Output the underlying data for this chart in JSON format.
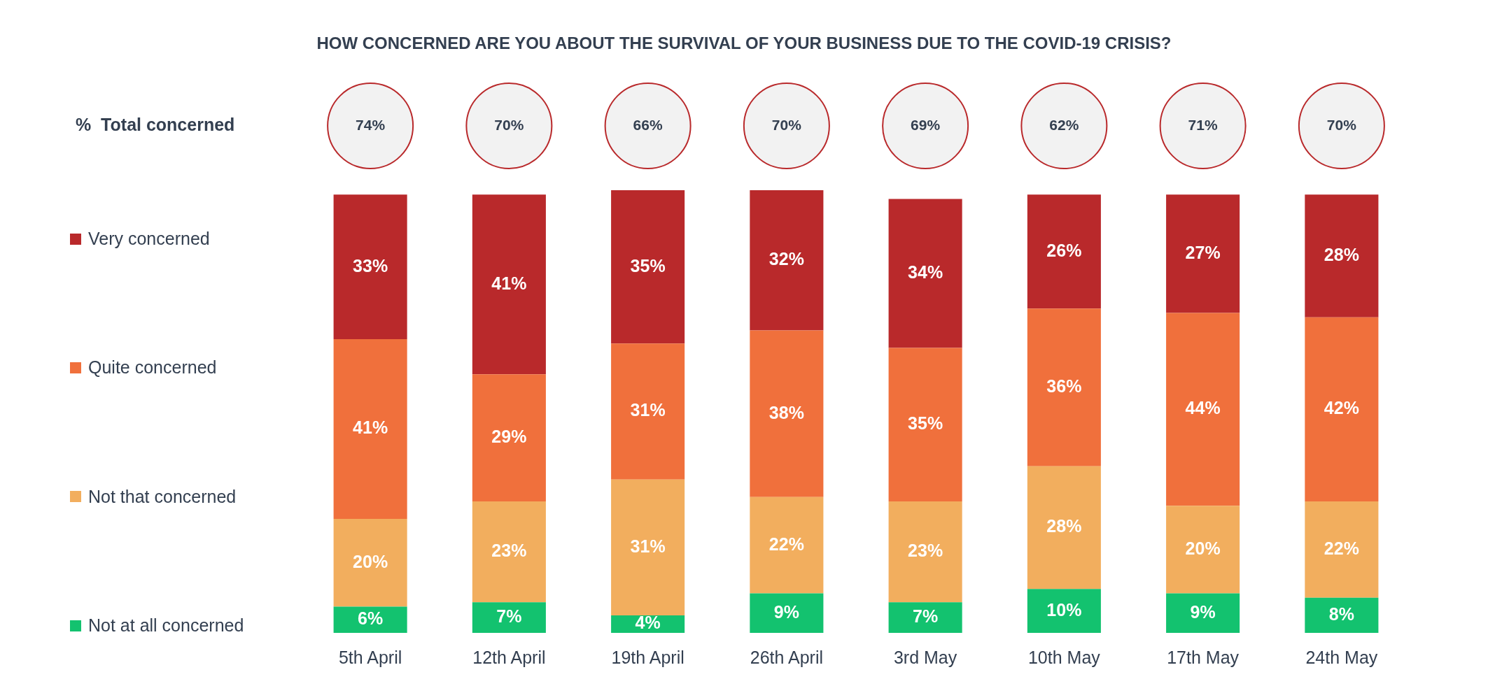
{
  "chart_data": {
    "type": "bar",
    "title": "HOW CONCERNED ARE YOU ABOUT THE SURVIVAL OF YOUR BUSINESS DUE TO THE COVID-19 CRISIS?",
    "categories": [
      "5th April",
      "12th April",
      "19th April",
      "26th April",
      "3rd May",
      "10th May",
      "17th May",
      "24th May"
    ],
    "series": [
      {
        "name": "Not at all concerned",
        "color": "#13c26f",
        "values": [
          6,
          7,
          4,
          9,
          7,
          10,
          9,
          8
        ],
        "value_labels": [
          "6%",
          "7%",
          "4%",
          "9%",
          "7%",
          "10%",
          "9%",
          "8%"
        ]
      },
      {
        "name": "Not that concerned",
        "color": "#f2ae5e",
        "values": [
          20,
          23,
          31,
          22,
          23,
          28,
          20,
          22
        ],
        "value_labels": [
          "20%",
          "23%",
          "31%",
          "22%",
          "23%",
          "28%",
          "20%",
          "22%"
        ]
      },
      {
        "name": "Quite concerned",
        "color": "#f0703c",
        "values": [
          41,
          29,
          31,
          38,
          35,
          36,
          44,
          42
        ],
        "value_labels": [
          "41%",
          "29%",
          "31%",
          "38%",
          "35%",
          "36%",
          "44%",
          "42%"
        ]
      },
      {
        "name": "Very concerned",
        "color": "#b9292b",
        "values": [
          33,
          41,
          35,
          32,
          34,
          26,
          27,
          28
        ],
        "value_labels": [
          "33%",
          "41%",
          "35%",
          "32%",
          "34%",
          "26%",
          "27%",
          "28%"
        ]
      }
    ],
    "stacked": true,
    "tick_labels": "x",
    "legend": "left",
    "annotations": [
      "%  Total concerned",
      "74%",
      "70%",
      "66%",
      "70%",
      "69%",
      "62%",
      "71%",
      "70%"
    ]
  }
}
